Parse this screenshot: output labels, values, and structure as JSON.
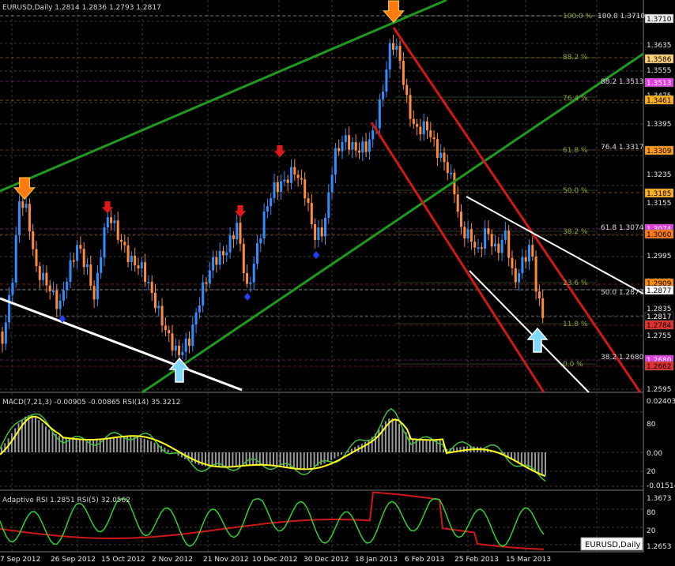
{
  "main_chart": {
    "header": "EURUSD,Daily  1.2814 1.2836 1.2793 1.2817",
    "y_ticks": [
      "1.3635",
      "1.3555",
      "1.3475",
      "1.3395",
      "1.3315",
      "1.3235",
      "1.3155",
      "1.2995",
      "1.2915",
      "1.2835",
      "1.2755",
      "1.2595"
    ],
    "price_tags": [
      {
        "value": "1.3710",
        "bg": "#e8e8e8",
        "fg": "#000000"
      },
      {
        "value": "1.3586",
        "bg": "#ffd27a",
        "fg": "#000000"
      },
      {
        "value": "1.3513",
        "bg": "#e040e0",
        "fg": "#ffffff"
      },
      {
        "value": "1.3461",
        "bg": "#ffb020",
        "fg": "#000000"
      },
      {
        "value": "1.3309",
        "bg": "#ff9a1a",
        "fg": "#000000"
      },
      {
        "value": "1.3185",
        "bg": "#ffb020",
        "fg": "#000000"
      },
      {
        "value": "1.3074",
        "bg": "#e040e0",
        "fg": "#ffffff"
      },
      {
        "value": "1.3060",
        "bg": "#ff7a1a",
        "fg": "#000000"
      },
      {
        "value": "1.2909",
        "bg": "#ff8a10",
        "fg": "#000000"
      },
      {
        "value": "1.2877",
        "bg": "#ffffff",
        "fg": "#000000"
      },
      {
        "value": "1.2817",
        "bg": "#000000",
        "fg": "#ffffff"
      },
      {
        "value": "1.2784",
        "bg": "#e03030",
        "fg": "#000000"
      },
      {
        "value": "1.2680",
        "bg": "#e040e0",
        "fg": "#ffffff"
      },
      {
        "value": "1.2662",
        "bg": "#e03030",
        "fg": "#000000"
      }
    ],
    "fib_levels": [
      "100.0  %",
      "88.2  %",
      "76.4  %",
      "61.8  %",
      "50.0  %",
      "38.2  %",
      "23.6  %",
      "11.8  %",
      "0.0  %"
    ],
    "fib_values": [
      "100.0  1.3710",
      "88.2  1.3513",
      "76.4  1.3317",
      "61.8  1.3074",
      "50.0  1.2877",
      "38.2  1.2680"
    ]
  },
  "macd_panel": {
    "header": "MACD(7,21,3) -0.00905 -0.00865  RSI(14) 35.3212",
    "ticks": [
      "0.02403",
      "80",
      "0.00",
      "20",
      "-0.01514"
    ]
  },
  "rsi_panel": {
    "header": "Adaptive RSI  1.2851  RSI(5) 32.0562",
    "ticks": [
      "1.3673",
      "80",
      "20",
      "1.2653"
    ]
  },
  "x_axis": [
    "7 Sep 2012",
    "26 Sep 2012",
    "15 Oct 2012",
    "2 Nov 2012",
    "21 Nov 2012",
    "10 Dec 2012",
    "30 Dec 2012",
    "18 Jan 2013",
    "6 Feb 2013",
    "25 Feb 2013",
    "15 Mar 2013"
  ],
  "symbol_label": "EURUSD,Daily",
  "colors": {
    "bull": "#2f8fff",
    "bear": "#ff8c3a",
    "up_channel": "#1f9a1f",
    "down_channel": "#d01818",
    "trend_white": "#ffffff"
  }
}
